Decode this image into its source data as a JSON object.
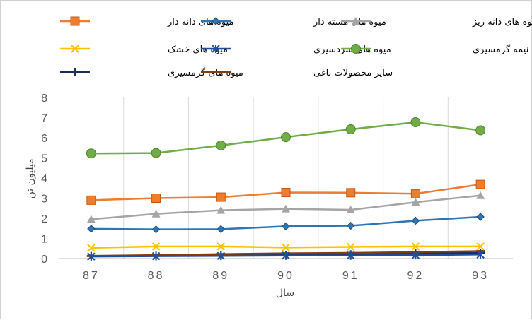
{
  "chart_data": {
    "type": "line",
    "title": "",
    "xlabel": "سال",
    "ylabel": "میلیون تن",
    "categories": [
      "87",
      "88",
      "89",
      "90",
      "91",
      "92",
      "93"
    ],
    "ylim": [
      0,
      8
    ],
    "yticks": [
      0,
      1,
      2,
      3,
      4,
      5,
      6,
      7,
      8
    ],
    "grid": "vertical",
    "legend_position": "top",
    "series": [
      {
        "name": "میوه های دانه دار",
        "marker": "square",
        "color": "#ED7D31",
        "values": [
          2.9,
          3.0,
          3.05,
          3.28,
          3.27,
          3.22,
          3.68
        ]
      },
      {
        "name": "میوه های هسته دار",
        "marker": "diamond",
        "color": "#2E75B6",
        "values": [
          1.48,
          1.45,
          1.46,
          1.6,
          1.63,
          1.88,
          2.07
        ]
      },
      {
        "name": "میوه های دانه ریز",
        "marker": "triangle",
        "color": "#A5A5A5",
        "values": [
          1.95,
          2.22,
          2.4,
          2.47,
          2.42,
          2.8,
          3.13
        ]
      },
      {
        "name": "میوه های خشک",
        "marker": "x",
        "color": "#FFC000",
        "values": [
          0.53,
          0.6,
          0.6,
          0.55,
          0.58,
          0.6,
          0.6
        ]
      },
      {
        "name": "میوه های سردسیری",
        "marker": "star",
        "color": "#1F4E9A",
        "values": [
          0.1,
          0.12,
          0.13,
          0.15,
          0.15,
          0.17,
          0.2
        ]
      },
      {
        "name": "میوه های نیمه گرمسیری",
        "marker": "circle",
        "color": "#70AD47",
        "values": [
          5.22,
          5.24,
          5.62,
          6.03,
          6.42,
          6.77,
          6.37
        ]
      },
      {
        "name": "میوه های گرمسیری",
        "marker": "plus",
        "color": "#1F2D5A",
        "values": [
          0.12,
          0.13,
          0.15,
          0.17,
          0.2,
          0.25,
          0.28
        ]
      },
      {
        "name": "سایر محصولات باغی",
        "marker": "dash",
        "color": "#843C0C",
        "values": [
          0.13,
          0.17,
          0.22,
          0.26,
          0.28,
          0.32,
          0.37
        ]
      }
    ]
  }
}
